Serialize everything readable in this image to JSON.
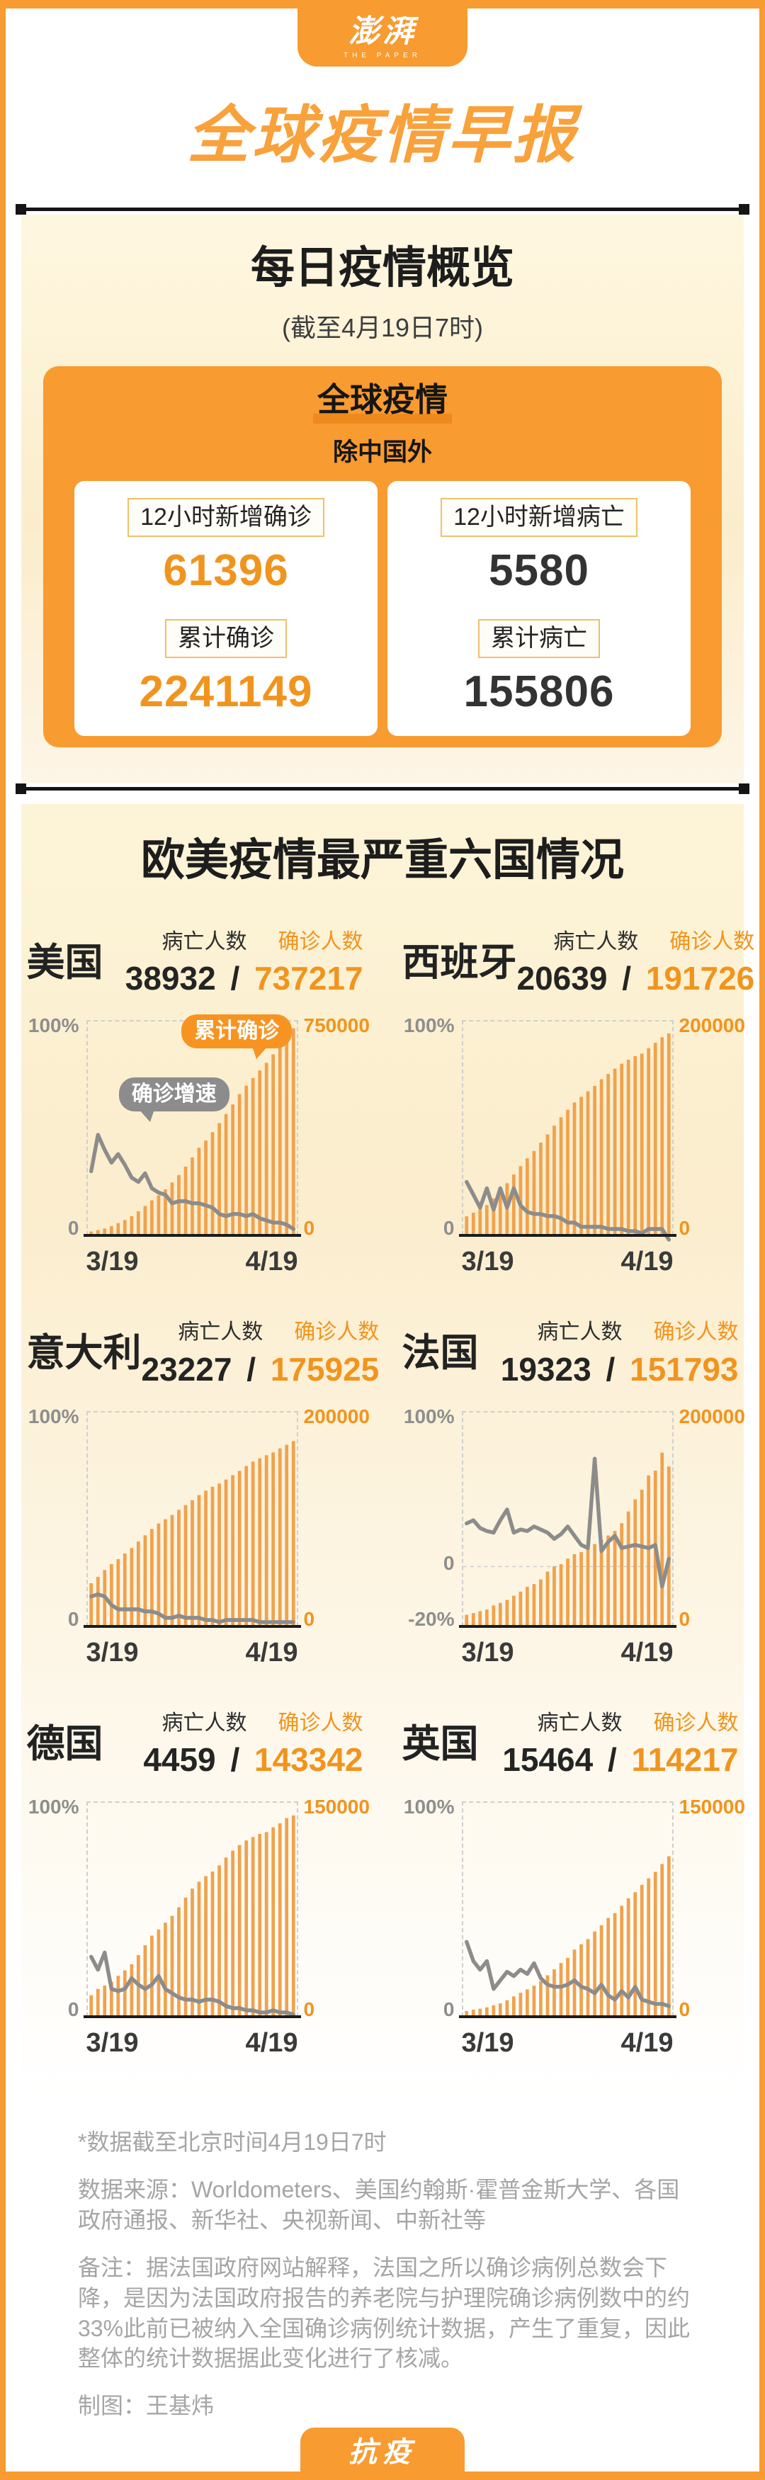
{
  "frame": {
    "logo_main": "澎湃",
    "logo_sub": "THE PAPER",
    "bottom_badge": "抗疫"
  },
  "page_title": "全球疫情早报",
  "overview": {
    "title": "每日疫情概览",
    "subtitle": "(截至4月19日7时)",
    "card": {
      "title": "全球疫情",
      "subtitle": "除中国外",
      "columns": [
        {
          "stats": [
            {
              "label": "12小时新增确诊",
              "value": "61396",
              "accent": "orange"
            },
            {
              "label": "累计确诊",
              "value": "2241149",
              "accent": "orange"
            }
          ]
        },
        {
          "stats": [
            {
              "label": "12小时新增病亡",
              "value": "5580",
              "accent": "dark"
            },
            {
              "label": "累计病亡",
              "value": "155806",
              "accent": "dark"
            }
          ]
        }
      ]
    }
  },
  "countries_section": {
    "title": "欧美疫情最严重六国情况",
    "death_label": "病亡人数",
    "confirmed_label": "确诊人数",
    "value_separator": "/",
    "x_start": "3/19",
    "x_end": "4/19",
    "callout_bars": "累计确诊",
    "callout_line": "确诊增速"
  },
  "chart_data": [
    {
      "type": "bar+line",
      "country": "美国",
      "deaths": "38932",
      "confirmed": "737217",
      "right_axis_label": "750000",
      "right_axis_max": 750000,
      "left_axis": {
        "top": "100%",
        "zero": "0"
      },
      "zero_pos": 1,
      "x_range": [
        "3/19",
        "4/19"
      ],
      "has_callouts": true,
      "bars": [
        13700,
        19100,
        24200,
        33000,
        43800,
        54900,
        68400,
        85600,
        104800,
        124700,
        142400,
        163800,
        188500,
        215000,
        244900,
        277500,
        312200,
        337600,
        367500,
        399900,
        432100,
        466000,
        502900,
        532900,
        560400,
        587200,
        614200,
        644100,
        671400,
        710300,
        737217
      ],
      "line_growth_pct": [
        30,
        47,
        40,
        34,
        38,
        33,
        27,
        25,
        29,
        22,
        20,
        19,
        15,
        16,
        16,
        15,
        15,
        14,
        13,
        10,
        9,
        10,
        10,
        9,
        10,
        8,
        7,
        6,
        6,
        5,
        3
      ]
    },
    {
      "type": "bar+line",
      "country": "西班牙",
      "deaths": "20639",
      "confirmed": "191726",
      "right_axis_label": "200000",
      "right_axis_max": 200000,
      "left_axis": {
        "top": "100%",
        "zero": "0"
      },
      "zero_pos": 1,
      "x_range": [
        "3/19",
        "4/19"
      ],
      "has_callouts": false,
      "bars": [
        18100,
        21600,
        25500,
        28800,
        35100,
        42100,
        49500,
        57800,
        65700,
        73200,
        80100,
        88000,
        95900,
        104100,
        112100,
        119200,
        126200,
        131600,
        136700,
        141900,
        148200,
        153200,
        158300,
        163000,
        166800,
        170100,
        172500,
        177600,
        182800,
        188100,
        191726
      ],
      "line_growth_pct": [
        25,
        19,
        13,
        22,
        12,
        22,
        13,
        22,
        14,
        11,
        10,
        10,
        9,
        9,
        8,
        6,
        6,
        4,
        4,
        4,
        4,
        3,
        3,
        3,
        2,
        2,
        1,
        3,
        3,
        3,
        -2
      ]
    },
    {
      "type": "bar+line",
      "country": "意大利",
      "deaths": "23227",
      "confirmed": "175925",
      "right_axis_label": "200000",
      "right_axis_max": 200000,
      "left_axis": {
        "top": "100%",
        "zero": "0"
      },
      "zero_pos": 1,
      "x_range": [
        "3/19",
        "4/19"
      ],
      "has_callouts": false,
      "bars": [
        41000,
        47000,
        53600,
        59100,
        63900,
        69200,
        74400,
        80600,
        86500,
        92500,
        97700,
        101700,
        105800,
        110600,
        115200,
        119800,
        124600,
        128900,
        132500,
        135600,
        139400,
        143600,
        147600,
        152300,
        156400,
        159500,
        162500,
        165200,
        168900,
        172400,
        175925
      ],
      "line_growth_pct": [
        14,
        15,
        14,
        10,
        8,
        8,
        8,
        8,
        7,
        7,
        6,
        4,
        4,
        5,
        4,
        4,
        4,
        3,
        3,
        2,
        3,
        3,
        3,
        3,
        3,
        2,
        2,
        2,
        2,
        2,
        2
      ]
    },
    {
      "type": "bar+line",
      "country": "法国",
      "deaths": "19323",
      "confirmed": "151793",
      "right_axis_label": "200000",
      "right_axis_max": 200000,
      "left_axis": {
        "top": "100%",
        "zero": "0",
        "bottom": "-20%"
      },
      "zero_pos": 0.72,
      "x_range": [
        "3/19",
        "4/19"
      ],
      "has_callouts": false,
      "bars": [
        11000,
        12600,
        14500,
        16000,
        19900,
        22300,
        25200,
        29200,
        33000,
        37600,
        40200,
        44600,
        52100,
        57000,
        59100,
        64300,
        68600,
        70500,
        74400,
        78200,
        82000,
        86300,
        90700,
        98000,
        109100,
        120600,
        129700,
        143300,
        147900,
        165000,
        151793
      ],
      "line_growth_pct": [
        28,
        30,
        25,
        23,
        22,
        30,
        37,
        22,
        24,
        23,
        26,
        24,
        22,
        18,
        21,
        26,
        20,
        14,
        12,
        70,
        10,
        16,
        20,
        12,
        13,
        14,
        13,
        12,
        14,
        -13,
        5
      ]
    },
    {
      "type": "bar+line",
      "country": "德国",
      "deaths": "4459",
      "confirmed": "143342",
      "right_axis_label": "150000",
      "right_axis_max": 150000,
      "left_axis": {
        "top": "100%",
        "zero": "0"
      },
      "zero_pos": 1,
      "x_range": [
        "3/19",
        "4/19"
      ],
      "has_callouts": false,
      "bars": [
        15300,
        19800,
        22200,
        24900,
        29100,
        33000,
        37300,
        43900,
        50900,
        57700,
        62100,
        66900,
        71800,
        77900,
        84800,
        91200,
        96100,
        100100,
        103400,
        107700,
        113300,
        118200,
        122200,
        125500,
        127900,
        130100,
        131400,
        134800,
        137700,
        141400,
        143342
      ],
      "line_growth_pct": [
        28,
        22,
        30,
        13,
        12,
        13,
        18,
        15,
        13,
        15,
        19,
        13,
        11,
        9,
        8,
        8,
        7,
        8,
        8,
        7,
        5,
        4,
        4,
        3,
        3,
        2,
        2,
        3,
        2,
        2,
        1
      ]
    },
    {
      "type": "bar+line",
      "country": "英国",
      "deaths": "15464",
      "confirmed": "114217",
      "right_axis_label": "150000",
      "right_axis_max": 150000,
      "left_axis": {
        "top": "100%",
        "zero": "0"
      },
      "zero_pos": 1,
      "x_range": [
        "3/19",
        "4/19"
      ],
      "has_callouts": false,
      "bars": [
        4000,
        5000,
        5700,
        6650,
        8100,
        9500,
        11700,
        14500,
        17100,
        19500,
        22100,
        25200,
        29500,
        33700,
        38200,
        41900,
        47800,
        51600,
        55200,
        60700,
        65100,
        70300,
        73800,
        79000,
        84300,
        88600,
        93900,
        98500,
        103100,
        108700,
        114217
      ],
      "line_growth_pct": [
        35,
        26,
        22,
        26,
        13,
        17,
        21,
        19,
        22,
        20,
        25,
        18,
        15,
        14,
        14,
        15,
        17,
        14,
        13,
        11,
        15,
        10,
        8,
        12,
        9,
        14,
        8,
        7,
        6,
        6,
        5
      ]
    }
  ],
  "footnotes": {
    "line1": "*数据截至北京时间4月19日7时",
    "line2": "数据来源：Worldometers、美国约翰斯·霍普金斯大学、各国政府通报、新华社、央视新闻、中新社等",
    "line3": "备注：据法国政府网站解释，法国之所以确诊病例总数会下降，是因为法国政府报告的养老院与护理院确诊病例数中的约33%此前已被纳入全国确诊病例统计数据，产生了重复，因此整体的统计数据据此变化进行了核减。",
    "credit": "制图：王基炜"
  },
  "colors": {
    "brand_orange": "#F89B30",
    "accent_orange": "#F1941E",
    "title_orange": "#F9A13B",
    "bar_orange": "#F0A24D",
    "underline_orange": "#EE8A1D",
    "line_gray": "#8C8C8C",
    "callout_gray": "#8C8C8C",
    "text_dark": "#222222",
    "note_gray": "#A5A5A5",
    "divider_black": "#151515"
  }
}
